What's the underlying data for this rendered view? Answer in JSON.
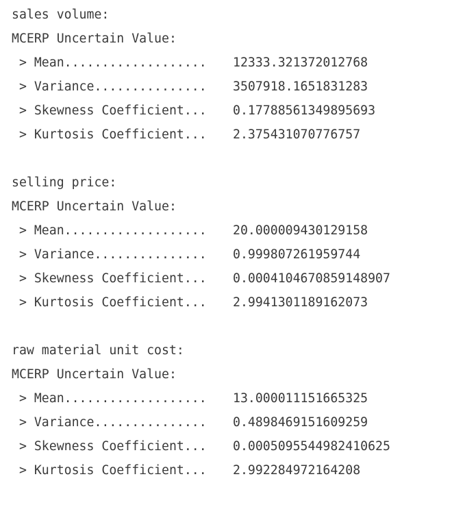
{
  "blocks": [
    {
      "name": "sales volume:",
      "header": "MCERP Uncertain Value:",
      "stats": [
        {
          "label": " > Mean...................",
          "value": "12333.321372012768"
        },
        {
          "label": " > Variance...............",
          "value": "3507918.1651831283"
        },
        {
          "label": " > Skewness Coefficient...",
          "value": "0.17788561349895693"
        },
        {
          "label": " > Kurtosis Coefficient...",
          "value": "2.375431070776757"
        }
      ]
    },
    {
      "name": "selling price:",
      "header": "MCERP Uncertain Value:",
      "stats": [
        {
          "label": " > Mean...................",
          "value": "20.000009430129158"
        },
        {
          "label": " > Variance...............",
          "value": "0.999807261959744"
        },
        {
          "label": " > Skewness Coefficient...",
          "value": "0.0004104670859148907"
        },
        {
          "label": " > Kurtosis Coefficient...",
          "value": "2.9941301189162073"
        }
      ]
    },
    {
      "name": "raw material unit cost:",
      "header": "MCERP Uncertain Value:",
      "stats": [
        {
          "label": " > Mean...................",
          "value": "13.000011151665325"
        },
        {
          "label": " > Variance...............",
          "value": "0.4898469151609259"
        },
        {
          "label": " > Skewness Coefficient...",
          "value": "0.0005095544982410625"
        },
        {
          "label": " > Kurtosis Coefficient...",
          "value": "2.992284972164208"
        }
      ]
    }
  ]
}
